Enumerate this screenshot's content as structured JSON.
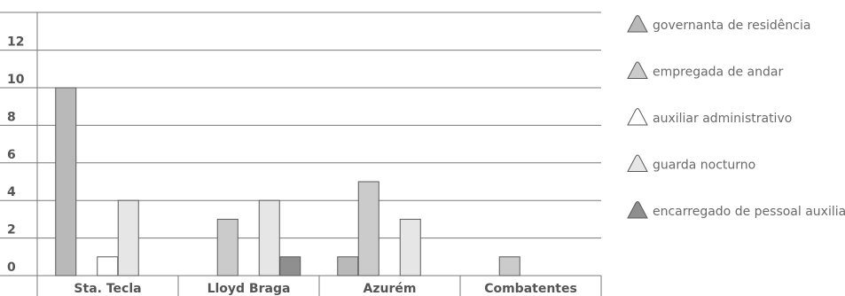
{
  "chart_data": {
    "type": "bar",
    "categories": [
      "Sta. Tecla",
      "Lloyd Braga",
      "Azurém",
      "Combatentes"
    ],
    "y_ticks": [
      "12",
      "10",
      "8",
      "6",
      "4",
      "2",
      "0"
    ],
    "ylim": [
      0,
      12
    ],
    "grid": true,
    "legend_position": "right",
    "series": [
      {
        "name": "governanta de residência",
        "values": [
          10,
          0,
          1,
          0
        ],
        "color": "#b9b9b9"
      },
      {
        "name": "empregada de andar",
        "values": [
          0,
          3,
          5,
          1
        ],
        "color": "#cbcbcb"
      },
      {
        "name": "auxiliar administrativo",
        "values": [
          1,
          0,
          0,
          0
        ],
        "color": "#ffffff"
      },
      {
        "name": "guarda nocturno",
        "values": [
          4,
          4,
          3,
          0
        ],
        "color": "#e6e6e6"
      },
      {
        "name": "encarregado de pessoal auxiliar",
        "values": [
          0,
          1,
          0,
          0
        ],
        "color": "#8f8f8f"
      }
    ]
  }
}
